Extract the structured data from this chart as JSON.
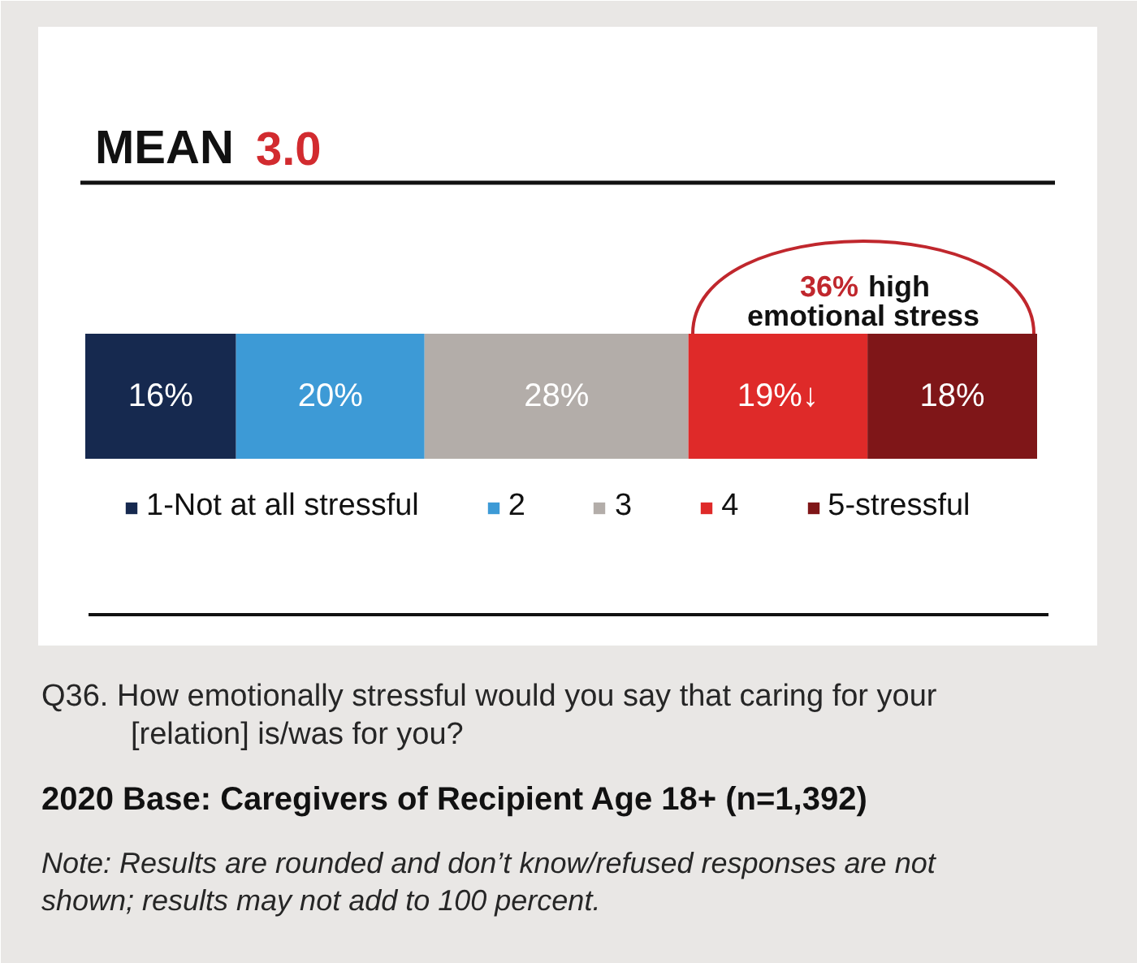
{
  "chart_data": {
    "type": "bar",
    "orientation": "horizontal",
    "stacked": true,
    "title": "MEAN 3.0",
    "categories": [
      null
    ],
    "series": [
      {
        "name": "1-Not at all stressful",
        "color": "#16294f",
        "values": [
          16
        ],
        "value_labels": [
          "16%"
        ]
      },
      {
        "name": "2",
        "color": "#3d9ad6",
        "values": [
          20
        ],
        "value_labels": [
          "20%"
        ]
      },
      {
        "name": "3",
        "color": "#b3ada9",
        "values": [
          28
        ],
        "value_labels": [
          "28%"
        ]
      },
      {
        "name": "4",
        "color": "#df2a29",
        "values": [
          19
        ],
        "value_labels": [
          "19%↓"
        ]
      },
      {
        "name": "5-stressful",
        "color": "#7f1618",
        "values": [
          18
        ],
        "value_labels": [
          "18%"
        ]
      }
    ],
    "legend": "bottom",
    "tick_labels": false,
    "annotations": [
      "36% high\nemotional stress",
      "Q36. How emotionally stressful would you say that caring for your\n[relation] is/was for you?",
      "2020 Base: Caregivers of Recipient Age 18+ (n=1,392)",
      "Note: Results are rounded and don’t know/refused responses are not\nshown; results may not add to 100 percent."
    ]
  }
}
